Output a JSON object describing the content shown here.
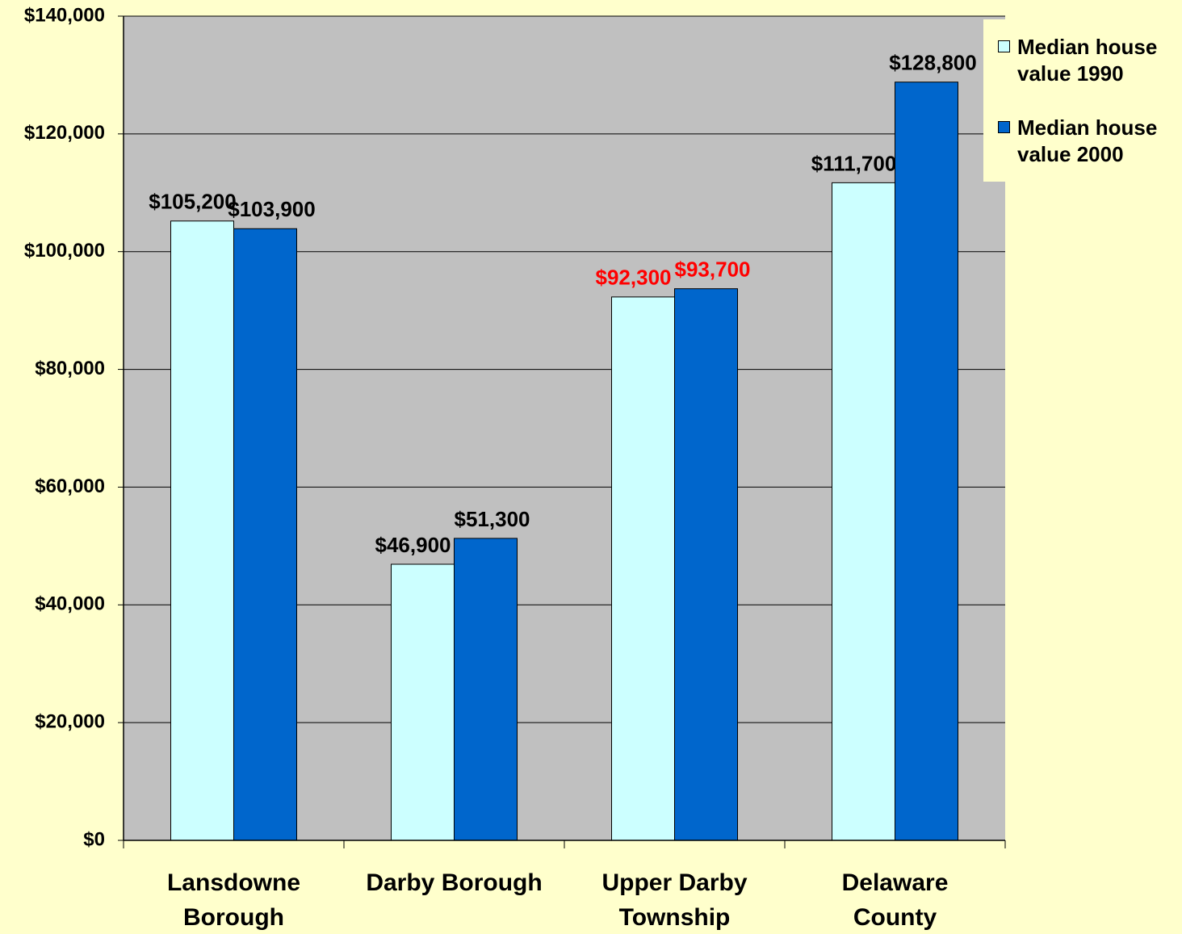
{
  "chart_data": {
    "type": "bar",
    "categories": [
      "Lansdowne\nBorough",
      "Darby Borough",
      "Upper Darby\nTownship",
      "Delaware\nCounty"
    ],
    "series": [
      {
        "name": "Median house value 1990",
        "color": "#ccffff",
        "values": [
          105200,
          46900,
          92300,
          111700
        ],
        "value_labels": [
          "$105,200",
          "$46,900",
          "$92,300",
          "$111,700"
        ],
        "label_colors": [
          "#000000",
          "#000000",
          "#ff0000",
          "#000000"
        ]
      },
      {
        "name": "Median house value 2000",
        "color": "#0066cc",
        "values": [
          103900,
          51300,
          93700,
          128800
        ],
        "value_labels": [
          "$103,900",
          "$51,300",
          "$93,700",
          "$128,800"
        ],
        "label_colors": [
          "#000000",
          "#000000",
          "#ff0000",
          "#000000"
        ]
      }
    ],
    "ylim": [
      0,
      140000
    ],
    "yticks": [
      {
        "value": 0,
        "label": "$0"
      },
      {
        "value": 20000,
        "label": "$20,000"
      },
      {
        "value": 40000,
        "label": "$40,000"
      },
      {
        "value": 60000,
        "label": "$60,000"
      },
      {
        "value": 80000,
        "label": "$80,000"
      },
      {
        "value": 100000,
        "label": "$100,000"
      },
      {
        "value": 120000,
        "label": "$120,000"
      },
      {
        "value": 140000,
        "label": "$140,000"
      }
    ],
    "grid": true,
    "legend": "top-right",
    "plot_color": "#c0c0c0",
    "background": "#ffffcc"
  }
}
